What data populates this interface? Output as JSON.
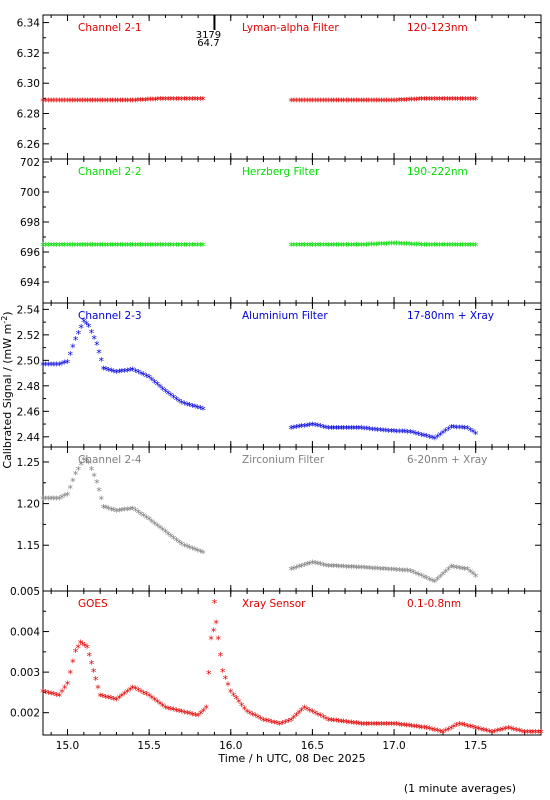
{
  "footer_note": "(1 minute averages)",
  "shared": {
    "xlabel": "Time / h UTC, 08 Dec 2025",
    "ylabel": "Calibrated Signal / (mW m",
    "ylabel_sup": "-2",
    "ylabel_close": ")",
    "xlim": [
      14.85,
      17.9
    ],
    "xticks": [
      15.0,
      15.5,
      16.0,
      16.5,
      17.0,
      17.5
    ],
    "xtick_labels": [
      "15.0",
      "15.5",
      "16.0",
      "16.5",
      "17.0",
      "17.5"
    ]
  },
  "panel_marker": {
    "x": 15.9,
    "label_top": "3179",
    "label_bottom": "64.7"
  },
  "chart_data": [
    {
      "type": "scatter",
      "channel": "Channel 2-1",
      "filter": "Lyman-alpha Filter",
      "band": "120-123nm",
      "color": "#e00000",
      "ylim": [
        6.25,
        6.345
      ],
      "yticks": [
        6.26,
        6.28,
        6.3,
        6.32,
        6.34
      ],
      "ytick_labels": [
        "6.26",
        "6.28",
        "6.30",
        "6.32",
        "6.34"
      ],
      "series": [
        {
          "x": [
            14.85,
            15.0,
            15.2,
            15.4,
            15.6,
            15.83
          ],
          "y": [
            6.288,
            6.288,
            6.288,
            6.288,
            6.289,
            6.289
          ]
        },
        {
          "x": [
            16.37,
            16.6,
            16.8,
            17.0,
            17.2,
            17.5
          ],
          "y": [
            6.288,
            6.288,
            6.288,
            6.288,
            6.289,
            6.289
          ]
        }
      ]
    },
    {
      "type": "scatter",
      "channel": "Channel 2-2",
      "filter": "Herzberg Filter",
      "band": "190-222nm",
      "color": "#00dd00",
      "ylim": [
        692.6,
        702.2
      ],
      "yticks": [
        694,
        696,
        698,
        700,
        702
      ],
      "ytick_labels": [
        "694",
        "696",
        "698",
        "700",
        "702"
      ],
      "series": [
        {
          "x": [
            14.85,
            15.0,
            15.2,
            15.4,
            15.6,
            15.83
          ],
          "y": [
            696.4,
            696.4,
            696.4,
            696.4,
            696.4,
            696.4
          ]
        },
        {
          "x": [
            16.37,
            16.6,
            16.8,
            17.0,
            17.2,
            17.5
          ],
          "y": [
            696.4,
            696.4,
            696.4,
            696.5,
            696.4,
            696.4
          ]
        }
      ]
    },
    {
      "type": "scatter",
      "channel": "Channel 2-3",
      "filter": "Aluminium Filter",
      "band": "17-80nm + Xray",
      "color": "#0000dd",
      "ylim": [
        2.432,
        2.545
      ],
      "yticks": [
        2.44,
        2.46,
        2.48,
        2.5,
        2.52,
        2.54
      ],
      "ytick_labels": [
        "2.44",
        "2.46",
        "2.48",
        "2.50",
        "2.52",
        "2.54"
      ],
      "series": [
        {
          "x": [
            14.85,
            14.95,
            15.0,
            15.05,
            15.1,
            15.13,
            15.18,
            15.22,
            15.3,
            15.4,
            15.5,
            15.6,
            15.7,
            15.83
          ],
          "y": [
            2.496,
            2.496,
            2.498,
            2.516,
            2.53,
            2.526,
            2.512,
            2.493,
            2.49,
            2.492,
            2.486,
            2.475,
            2.466,
            2.461
          ]
        },
        {
          "x": [
            16.37,
            16.5,
            16.6,
            16.8,
            16.95,
            17.1,
            17.25,
            17.35,
            17.45,
            17.5
          ],
          "y": [
            2.446,
            2.449,
            2.446,
            2.446,
            2.444,
            2.443,
            2.438,
            2.447,
            2.446,
            2.442
          ]
        }
      ]
    },
    {
      "type": "scatter",
      "channel": "Channel 2-4",
      "filter": "Zirconium Filter",
      "band": "6-20nm + Xray",
      "color": "#808080",
      "ylim": [
        1.095,
        1.268
      ],
      "yticks": [
        1.15,
        1.2,
        1.25
      ],
      "ytick_labels": [
        "1.15",
        "1.20",
        "1.25"
      ],
      "series": [
        {
          "x": [
            14.85,
            14.95,
            15.0,
            15.05,
            15.1,
            15.13,
            15.18,
            15.22,
            15.3,
            15.4,
            15.5,
            15.6,
            15.7,
            15.83
          ],
          "y": [
            1.205,
            1.205,
            1.21,
            1.235,
            1.252,
            1.248,
            1.225,
            1.195,
            1.19,
            1.193,
            1.18,
            1.165,
            1.15,
            1.14
          ]
        },
        {
          "x": [
            16.37,
            16.5,
            16.6,
            16.8,
            16.95,
            17.1,
            17.25,
            17.35,
            17.45,
            17.5
          ],
          "y": [
            1.12,
            1.128,
            1.124,
            1.122,
            1.12,
            1.118,
            1.105,
            1.123,
            1.12,
            1.112
          ]
        }
      ]
    },
    {
      "type": "scatter",
      "channel": "GOES",
      "filter": "Xray Sensor",
      "band": "0.1-0.8nm",
      "color": "#e00000",
      "ylim": [
        0.00145,
        0.005
      ],
      "yticks": [
        0.002,
        0.003,
        0.004,
        0.005
      ],
      "ytick_labels": [
        "0.002",
        "0.003",
        "0.004",
        "0.005"
      ],
      "series": [
        {
          "x": [
            14.85,
            14.95,
            15.0,
            15.05,
            15.08,
            15.12,
            15.16,
            15.2,
            15.3,
            15.4,
            15.5,
            15.6,
            15.7,
            15.8,
            15.85,
            15.88,
            15.91,
            15.95,
            16.0,
            16.1,
            16.2,
            16.3,
            16.37,
            16.45,
            16.6,
            16.8,
            17.0,
            17.2,
            17.3,
            17.4,
            17.5,
            17.6,
            17.7,
            17.8,
            17.9
          ],
          "y": [
            0.0025,
            0.0024,
            0.0027,
            0.0035,
            0.0037,
            0.0036,
            0.003,
            0.0024,
            0.0023,
            0.0026,
            0.0024,
            0.0021,
            0.002,
            0.0019,
            0.0021,
            0.0038,
            0.0042,
            0.003,
            0.0025,
            0.002,
            0.0018,
            0.0017,
            0.0018,
            0.0021,
            0.0018,
            0.0017,
            0.0017,
            0.0016,
            0.0015,
            0.0017,
            0.0016,
            0.0015,
            0.0016,
            0.0015,
            0.0015
          ]
        },
        {
          "x": [
            15.9
          ],
          "y": [
            0.0047
          ]
        }
      ]
    }
  ]
}
